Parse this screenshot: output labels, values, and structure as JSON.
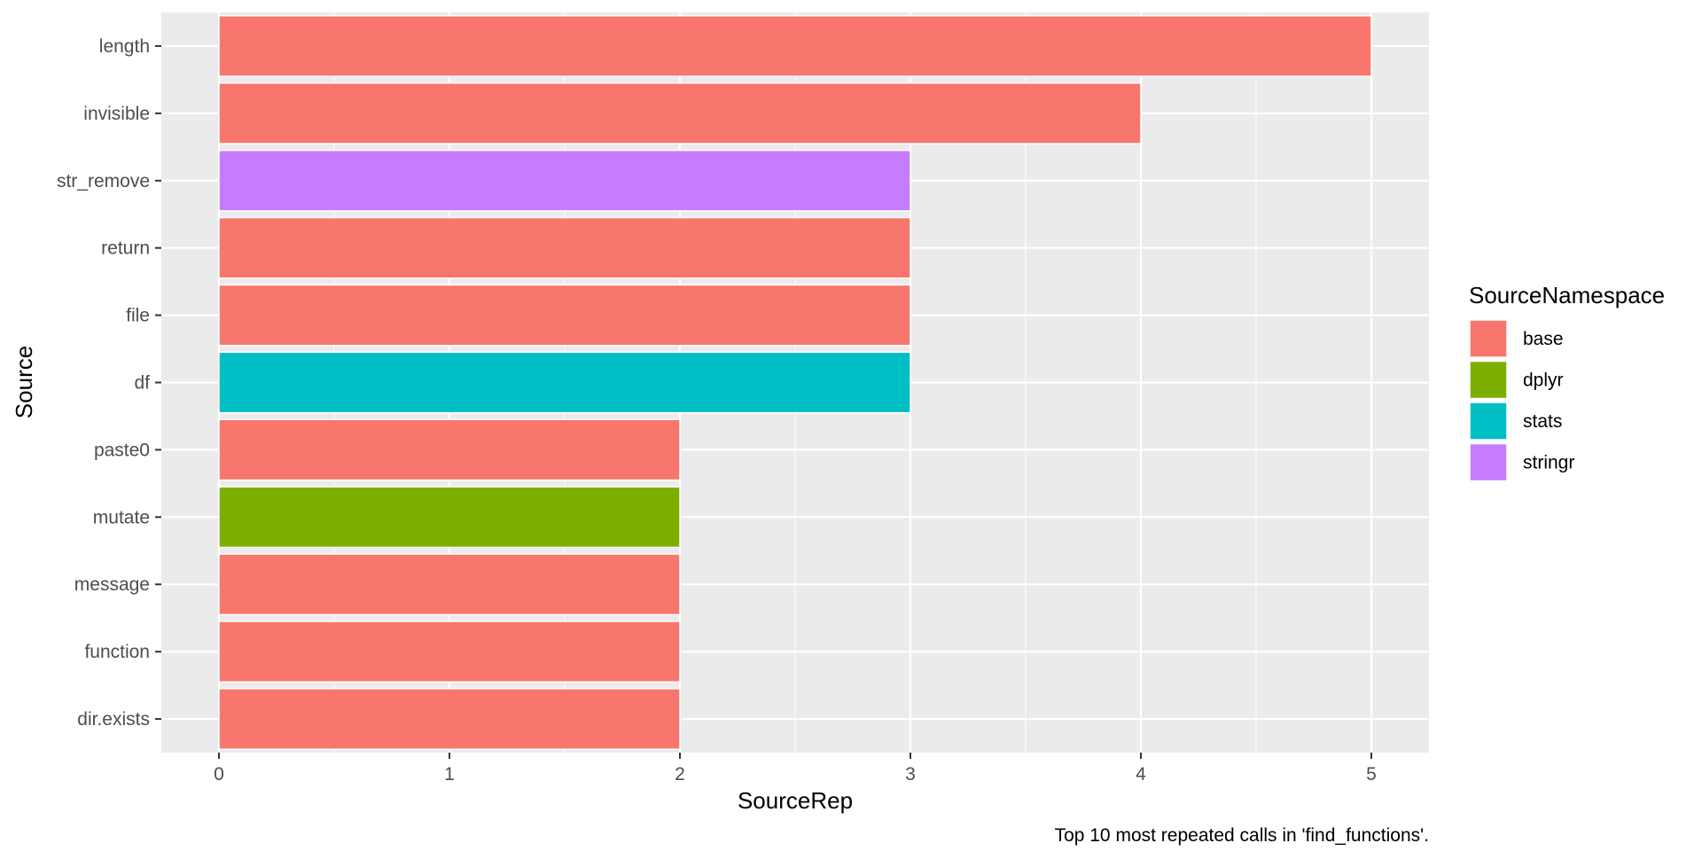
{
  "chart_data": {
    "type": "bar",
    "orientation": "horizontal",
    "categories": [
      "length",
      "invisible",
      "str_remove",
      "return",
      "file",
      "df",
      "paste0",
      "mutate",
      "message",
      "function",
      "dir.exists"
    ],
    "values": [
      5,
      4,
      3,
      3,
      3,
      3,
      2,
      2,
      2,
      2,
      2
    ],
    "groups": [
      "base",
      "base",
      "stringr",
      "base",
      "base",
      "stats",
      "base",
      "dplyr",
      "base",
      "base",
      "base"
    ],
    "xlabel": "SourceRep",
    "ylabel": "Source",
    "xlim": [
      -0.25,
      5.25
    ],
    "xticks": [
      "0",
      "1",
      "2",
      "3",
      "4",
      "5"
    ],
    "legend": {
      "title": "SourceNamespace",
      "position": "right",
      "entries": [
        {
          "label": "base",
          "color": "#F8766D"
        },
        {
          "label": "dplyr",
          "color": "#7CAE00"
        },
        {
          "label": "stats",
          "color": "#00BFC4"
        },
        {
          "label": "stringr",
          "color": "#C77CFF"
        }
      ]
    },
    "caption": "Top 10 most repeated calls in 'find_functions'.",
    "grid": true,
    "panel_background": "#EBEBEB"
  }
}
